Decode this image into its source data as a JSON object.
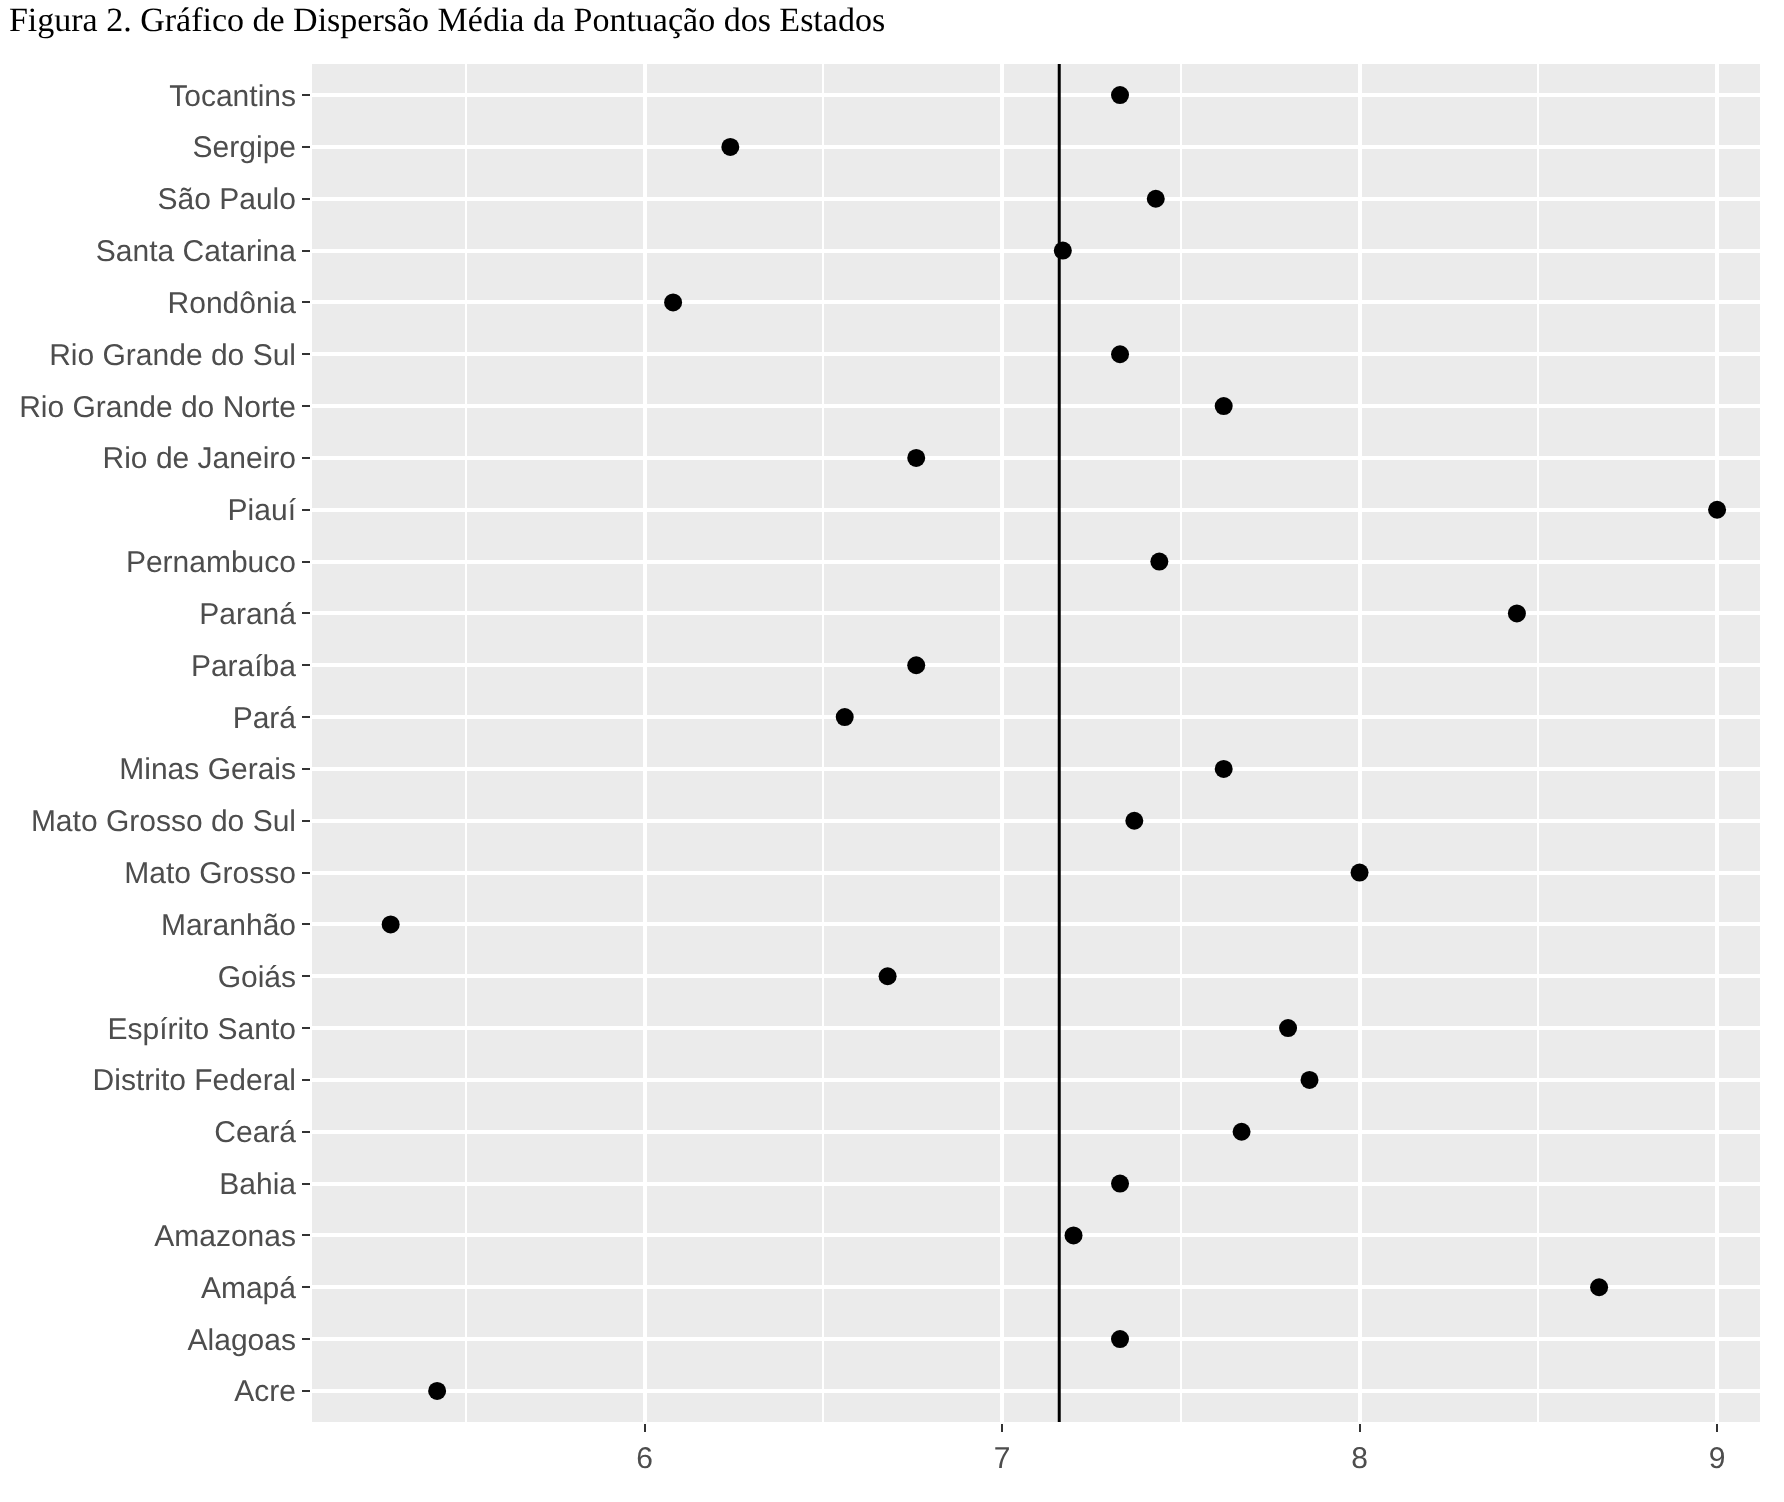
{
  "chart_data": {
    "type": "scatter",
    "title": "Figura 2. Gráfico de Dispersão Média da Pontuação dos Estados",
    "orientation": "horizontal",
    "categories": [
      "Tocantins",
      "Sergipe",
      "São Paulo",
      "Santa Catarina",
      "Rondônia",
      "Rio Grande do Sul",
      "Rio Grande do Norte",
      "Rio de Janeiro",
      "Piauí",
      "Pernambuco",
      "Paraná",
      "Paraíba",
      "Pará",
      "Minas Gerais",
      "Mato Grosso do Sul",
      "Mato Grosso",
      "Maranhão",
      "Goiás",
      "Espírito Santo",
      "Distrito Federal",
      "Ceará",
      "Bahia",
      "Amazonas",
      "Amapá",
      "Alagoas",
      "Acre"
    ],
    "series": [
      {
        "color": "#000000",
        "values": [
          7.33,
          6.24,
          7.43,
          7.17,
          6.08,
          7.33,
          7.62,
          6.76,
          9.0,
          7.44,
          8.44,
          6.76,
          6.56,
          7.62,
          7.37,
          8.0,
          5.29,
          6.68,
          7.8,
          7.86,
          7.67,
          7.33,
          7.2,
          8.67,
          7.33,
          5.42
        ]
      }
    ],
    "xlim": [
      5.07,
      9.12
    ],
    "xticks": [
      {
        "value": 5.5,
        "label": null
      },
      6,
      {
        "value": 6.5,
        "label": null
      },
      7,
      {
        "value": 7.5,
        "label": null
      },
      8,
      {
        "value": 8.5,
        "label": null
      },
      9
    ],
    "ref_lines": [
      {
        "axis": "x",
        "value": 7.16,
        "color": "#000000"
      }
    ],
    "grid": true,
    "marker": "circle"
  }
}
